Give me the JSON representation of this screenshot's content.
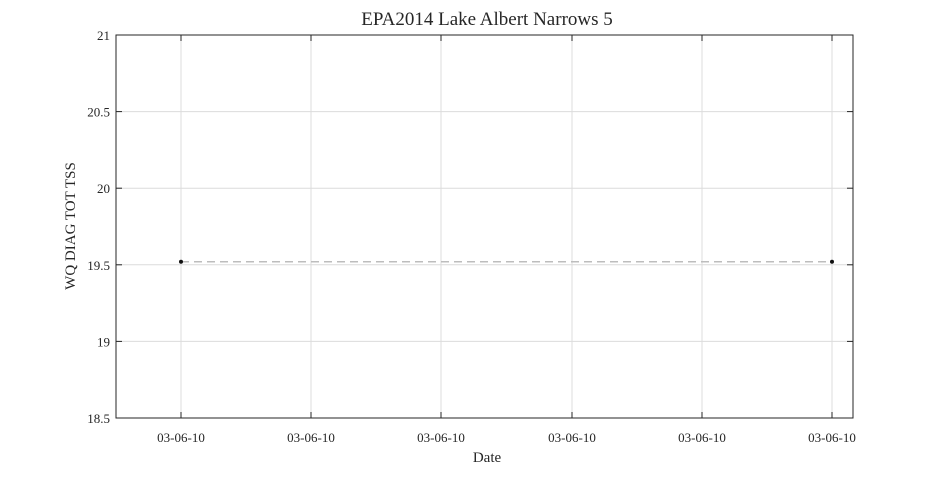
{
  "chart_data": {
    "type": "line",
    "title": "EPA2014 Lake Albert Narrows 5",
    "xlabel": "Date",
    "ylabel": "WQ DIAG TOT TSS",
    "ylim": [
      18.5,
      21
    ],
    "yticks": [
      "18.5",
      "19",
      "19.5",
      "20",
      "20.5",
      "21"
    ],
    "xticks": [
      "03-06-10",
      "03-06-10",
      "03-06-10",
      "03-06-10",
      "03-06-10",
      "03-06-10"
    ],
    "grid": true,
    "series": [
      {
        "x": [
          "03-06-10",
          "03-06-10"
        ],
        "values": [
          19.52,
          19.52
        ],
        "style": "dashed",
        "color": "#bdbdbd",
        "marker_color": "#111111"
      }
    ]
  }
}
